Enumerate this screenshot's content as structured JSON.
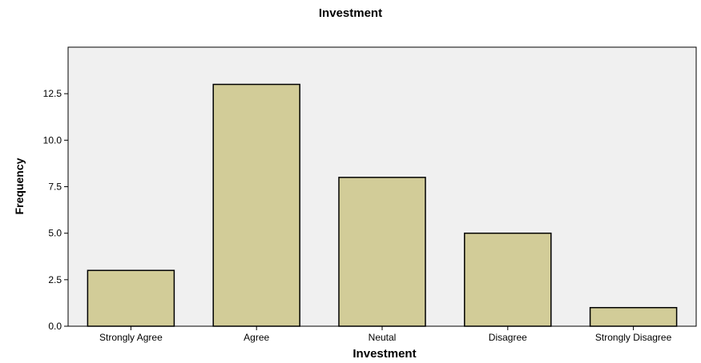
{
  "chart_data": {
    "type": "bar",
    "title": "Investment",
    "xlabel": "Investment",
    "ylabel": "Frequency",
    "categories": [
      "Strongly Agree",
      "Agree",
      "Neutal",
      "Disagree",
      "Strongly Disagree"
    ],
    "values": [
      3,
      13,
      8,
      5,
      1
    ],
    "ylim": [
      0,
      15
    ],
    "yticks": [
      0.0,
      2.5,
      5.0,
      7.5,
      10.0,
      12.5
    ],
    "ytick_labels": [
      "0.0",
      "2.5",
      "5.0",
      "7.5",
      "10.0",
      "12.5"
    ],
    "grid": false,
    "legend": "none",
    "colors": {
      "bar_fill": "#d2cc98",
      "bar_stroke": "#000000",
      "plot_background": "#f0f0f0",
      "axis": "#000000"
    }
  }
}
